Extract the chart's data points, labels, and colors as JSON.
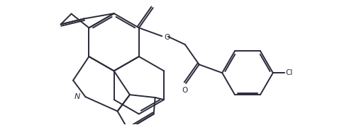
{
  "background_color": "#ffffff",
  "line_color": "#2a2a3a",
  "line_width": 1.4,
  "figsize": [
    4.75,
    1.77
  ],
  "dpi": 100,
  "label_N": "N",
  "label_O1": "O",
  "label_O2": "O",
  "label_Cl": "Cl"
}
